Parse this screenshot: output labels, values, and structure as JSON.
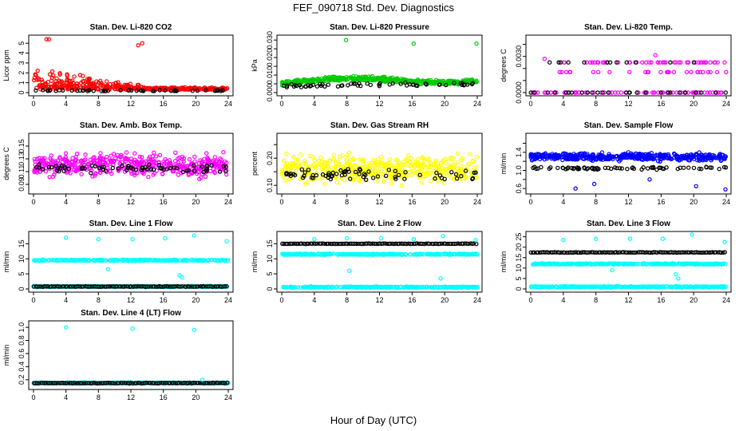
{
  "figure": {
    "title": "FEF_090718  Std. Dev. Diagnostics",
    "xlabel": "Hour of Day (UTC)"
  },
  "chart_data": [
    {
      "type": "scatter",
      "title": "Stan. Dev. Li-820 CO2",
      "ylabel": "Licor ppm",
      "color": "#ff0000",
      "xlim": [
        0,
        24
      ],
      "ylim": [
        0,
        5.5
      ],
      "xticks": [
        0,
        4,
        8,
        12,
        16,
        20,
        24
      ],
      "yticks": [
        0,
        1,
        2,
        3,
        4,
        5
      ],
      "ytick_labels": [
        "0",
        "1",
        "2",
        "3",
        "4",
        "5"
      ],
      "shape": "decay",
      "base": 0.3,
      "spread": 1.6,
      "black_level": 0.15,
      "outliers": [
        [
          1.6,
          5.4
        ],
        [
          1.9,
          5.4
        ],
        [
          13.4,
          5.0
        ],
        [
          12.9,
          4.8
        ]
      ]
    },
    {
      "type": "scatter",
      "title": "Stan. Dev. Li-820 Pressure",
      "ylabel": "kPa",
      "color": "#00cc00",
      "xlim": [
        0,
        24
      ],
      "ylim": [
        0,
        0.031
      ],
      "xticks": [
        0,
        4,
        8,
        12,
        16,
        20,
        24
      ],
      "yticks": [
        0,
        0.005,
        0.01,
        0.015,
        0.02,
        0.025,
        0.03
      ],
      "ytick_labels": [
        "0.000",
        "",
        "0.010",
        "",
        "0.020",
        "",
        "0.030"
      ],
      "shape": "wave",
      "base": 0.006,
      "spread": 0.003,
      "black_level": 0.004,
      "outliers": [
        [
          7.9,
          0.03
        ],
        [
          16.2,
          0.028
        ],
        [
          23.9,
          0.028
        ]
      ]
    },
    {
      "type": "scatter",
      "title": "Stan. Dev. Li-820 Temp.",
      "ylabel": "degrees C",
      "color": "#ff00ff",
      "xlim": [
        0,
        24
      ],
      "ylim": [
        0,
        0.0045
      ],
      "xticks": [
        0,
        4,
        8,
        12,
        16,
        20,
        24
      ],
      "yticks": [
        0,
        0.001,
        0.002,
        0.003,
        0.004
      ],
      "ytick_labels": [
        "0.0000",
        "",
        "",
        "0.0030",
        ""
      ],
      "shape": "levels",
      "levels": [
        0,
        0.0017,
        0.0025
      ],
      "outliers": [
        [
          1.7,
          0.0028
        ],
        [
          15.3,
          0.0031
        ]
      ]
    },
    {
      "type": "scatter",
      "title": "Stan. Dev. Amb. Box Temp.",
      "ylabel": "degrees C",
      "color": "#ff00ff",
      "xlim": [
        0,
        24
      ],
      "ylim": [
        0.08,
        0.165
      ],
      "xticks": [
        0,
        4,
        8,
        12,
        16,
        20,
        24
      ],
      "yticks": [
        0.09,
        0.11,
        0.13,
        0.15
      ],
      "ytick_labels": [
        "0.09",
        "0.11",
        "0.13",
        "0.15"
      ],
      "shape": "noise",
      "base": 0.12,
      "spread": 0.025,
      "black_level": 0.115,
      "outliers": []
    },
    {
      "type": "scatter",
      "title": "Stan. Dev. Gas Stream RH",
      "ylabel": "percent",
      "color": "#ffff00",
      "xlim": [
        0,
        24
      ],
      "ylim": [
        0.08,
        0.28
      ],
      "xticks": [
        0,
        4,
        8,
        12,
        16,
        20,
        24
      ],
      "yticks": [
        0.1,
        0.15,
        0.2,
        0.25
      ],
      "ytick_labels": [
        "0.10",
        "",
        "0.20",
        ""
      ],
      "shape": "noise",
      "base": 0.16,
      "spread": 0.07,
      "black_level": 0.14,
      "outliers": []
    },
    {
      "type": "scatter",
      "title": "Stan. Dev. Sample Flow",
      "ylabel": "ml/min",
      "color": "#0000ff",
      "xlim": [
        0,
        24
      ],
      "ylim": [
        0.55,
        1.75
      ],
      "xticks": [
        0,
        4,
        8,
        12,
        16,
        20,
        24
      ],
      "yticks": [
        0.6,
        0.8,
        1.0,
        1.2,
        1.4,
        1.6
      ],
      "ytick_labels": [
        "0.6",
        "",
        "1.0",
        "",
        "1.4",
        ""
      ],
      "shape": "noise",
      "base": 1.3,
      "spread": 0.12,
      "black_level": 1.05,
      "outliers": [
        [
          5.5,
          0.6
        ],
        [
          7.8,
          0.7
        ],
        [
          14.6,
          0.8
        ],
        [
          20.3,
          0.65
        ],
        [
          23.9,
          0.58
        ]
      ]
    },
    {
      "type": "scatter",
      "title": "Stan. Dev. Line 1 Flow",
      "ylabel": "ml/min",
      "color": "#00ffff",
      "xlim": [
        0,
        24
      ],
      "ylim": [
        0,
        18
      ],
      "xticks": [
        0,
        4,
        8,
        12,
        16,
        20,
        24
      ],
      "yticks": [
        0,
        5,
        10,
        15
      ],
      "ytick_labels": [
        "0",
        "5",
        "10",
        "15"
      ],
      "shape": "band",
      "bands": [
        9.5,
        0.8
      ],
      "band_black": 0.8,
      "outliers": [
        [
          4.0,
          17
        ],
        [
          8.0,
          16.5
        ],
        [
          12.2,
          16.5
        ],
        [
          16.2,
          16.8
        ],
        [
          19.8,
          17.8
        ],
        [
          23.8,
          15.8
        ],
        [
          18.0,
          4.5
        ],
        [
          18.3,
          3.8
        ],
        [
          9.2,
          6.5
        ]
      ]
    },
    {
      "type": "scatter",
      "title": "Stan. Dev. Line 2 Flow",
      "ylabel": "ml/min",
      "color": "#00ffff",
      "xlim": [
        0,
        24
      ],
      "ylim": [
        0,
        18
      ],
      "xticks": [
        0,
        4,
        8,
        12,
        16,
        20,
        24
      ],
      "yticks": [
        0,
        5,
        10,
        15
      ],
      "ytick_labels": [
        "0",
        "5",
        "10",
        "15"
      ],
      "shape": "band",
      "bands": [
        11.5,
        0.6
      ],
      "band_black": 15.0,
      "outliers": [
        [
          4.0,
          16.5
        ],
        [
          8.0,
          16.8
        ],
        [
          12.2,
          16.8
        ],
        [
          16.2,
          16.5
        ],
        [
          19.8,
          17.5
        ],
        [
          23.8,
          16.2
        ],
        [
          19.5,
          3.5
        ],
        [
          8.3,
          6.0
        ]
      ]
    },
    {
      "type": "scatter",
      "title": "Stan. Dev. Line 3 Flow",
      "ylabel": "ml/min",
      "color": "#00ffff",
      "xlim": [
        0,
        24
      ],
      "ylim": [
        0,
        26
      ],
      "xticks": [
        0,
        4,
        8,
        12,
        16,
        20,
        24
      ],
      "yticks": [
        0,
        5,
        10,
        15,
        20,
        25
      ],
      "ytick_labels": [
        "0",
        "5",
        "10",
        "15",
        "20",
        "25"
      ],
      "shape": "band",
      "bands": [
        12.0,
        1.0
      ],
      "band_black": 17.5,
      "outliers": [
        [
          4.0,
          23.5
        ],
        [
          8.0,
          24
        ],
        [
          12.2,
          24
        ],
        [
          16.2,
          24
        ],
        [
          19.8,
          26
        ],
        [
          23.8,
          22.5
        ],
        [
          17.8,
          7
        ],
        [
          18.1,
          5
        ],
        [
          10.0,
          9
        ]
      ]
    },
    {
      "type": "scatter",
      "title": "Stan. Dev. Line 4 (LT) Flow",
      "ylabel": "ml/min",
      "color": "#00ffff",
      "xlim": [
        0,
        24
      ],
      "ylim": [
        0.1,
        1.05
      ],
      "xticks": [
        0,
        4,
        8,
        12,
        16,
        20,
        24
      ],
      "yticks": [
        0.2,
        0.4,
        0.6,
        0.8,
        1.0
      ],
      "ytick_labels": [
        "0.2",
        "0.4",
        "0.6",
        "0.8",
        "1.0"
      ],
      "shape": "band",
      "bands": [
        0.15
      ],
      "band_black": 0.15,
      "outliers": [
        [
          4.0,
          1.0
        ],
        [
          12.2,
          0.98
        ],
        [
          19.8,
          0.96
        ],
        [
          20.8,
          0.2
        ]
      ]
    }
  ]
}
